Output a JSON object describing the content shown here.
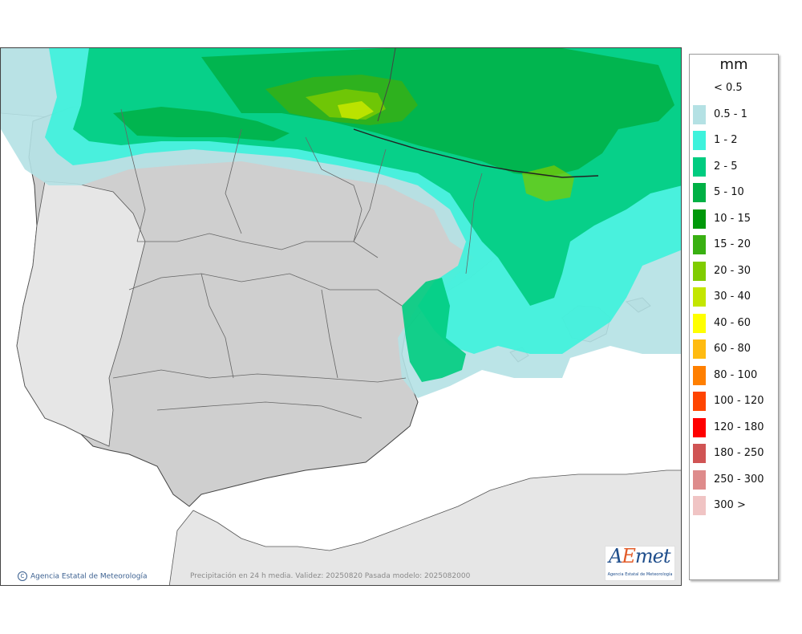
{
  "legend": {
    "unit": "mm",
    "items": [
      {
        "label": "< 0.5",
        "color": "#ffffff"
      },
      {
        "label": "0.5 - 1",
        "color": "#b4e1e4"
      },
      {
        "label": "1 - 2",
        "color": "#3df2dc"
      },
      {
        "label": "2 - 5",
        "color": "#00cc80"
      },
      {
        "label": "5 - 10",
        "color": "#00b045"
      },
      {
        "label": "10 - 15",
        "color": "#00980a"
      },
      {
        "label": "15 - 20",
        "color": "#39b012"
      },
      {
        "label": "20 - 30",
        "color": "#80cc00"
      },
      {
        "label": "30 - 40",
        "color": "#c3e600"
      },
      {
        "label": "40 - 60",
        "color": "#ffff00"
      },
      {
        "label": "60 - 80",
        "color": "#ffbb11"
      },
      {
        "label": "80 - 100",
        "color": "#ff7f00"
      },
      {
        "label": "100 - 120",
        "color": "#ff4400"
      },
      {
        "label": "120 - 180",
        "color": "#ff0000"
      },
      {
        "label": "180 - 250",
        "color": "#d05454"
      },
      {
        "label": "250 - 300",
        "color": "#de8b8b"
      },
      {
        "label": "300 >",
        "color": "#f0c4c4"
      }
    ]
  },
  "copyright": {
    "icon": "copyright-icon",
    "text": "Agencia Estatal de Meteorología"
  },
  "footer": {
    "info": "Precipitación en 24 h media. Validez: 20250820 Pasada modelo: 2025082000"
  },
  "logo": {
    "word_a": "A",
    "word_e": "E",
    "word_rest": "met",
    "subtitle": "Agencia Estatal de Meteorología"
  },
  "colors": {
    "land": "#cfcfcf",
    "sea": "#ffffff",
    "border": "#333333",
    "accent": "#1f4e8c"
  }
}
